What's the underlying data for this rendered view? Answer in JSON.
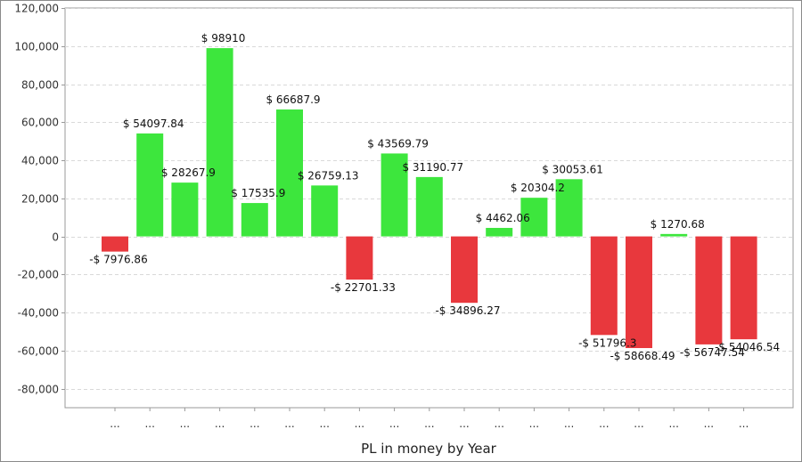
{
  "chart_data": {
    "type": "bar",
    "title": "",
    "xlabel": "PL in money by Year",
    "ylabel": "",
    "ylim": [
      -90000,
      120000
    ],
    "yticks": [
      120000,
      100000,
      80000,
      60000,
      40000,
      20000,
      0,
      -20000,
      -40000,
      -60000,
      -80000
    ],
    "ytick_labels": [
      "120,000",
      "100,000",
      "80,000",
      "60,000",
      "40,000",
      "20,000",
      "0",
      "-20,000",
      "-40,000",
      "-60,000",
      "-80,000"
    ],
    "grid": true,
    "categories": [
      "...",
      "...",
      "...",
      "...",
      "...",
      "...",
      "...",
      "...",
      "...",
      "...",
      "...",
      "...",
      "...",
      "...",
      "...",
      "...",
      "...",
      "...",
      "..."
    ],
    "values": [
      -7976.86,
      54097.84,
      28267.9,
      98910,
      17535.9,
      66687.9,
      26759.13,
      -22701.33,
      43569.79,
      31190.77,
      -34896.27,
      4462.06,
      20304.2,
      30053.61,
      -51796.3,
      -58668.49,
      1270.68,
      -56747.54,
      -54046.54
    ],
    "data_labels": [
      "-$ 7976.86",
      "$ 54097.84",
      "$ 28267.9",
      "$ 98910",
      "$ 17535.9",
      "$ 66687.9",
      "$ 26759.13",
      "-$ 22701.33",
      "$ 43569.79",
      "$ 31190.77",
      "-$ 34896.27",
      "$ 4462.06",
      "$ 20304.2",
      "$ 30053.61",
      "-$ 51796.3",
      "-$ 58668.49",
      "$ 1270.68",
      "-$ 56747.54",
      "-$ 54046.54"
    ],
    "colors": {
      "positive": "#3de63d",
      "negative": "#e8383d",
      "grid": "#d9d9d9",
      "axis": "#999999"
    }
  }
}
